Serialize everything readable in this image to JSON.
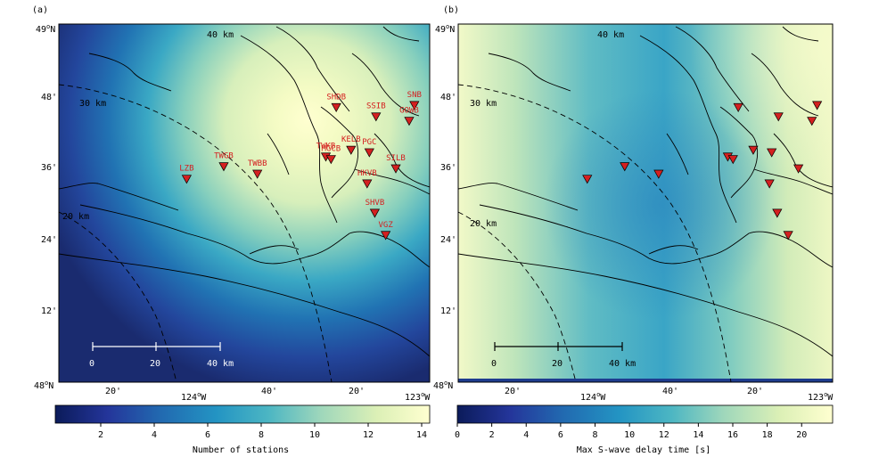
{
  "panel_a": {
    "label": "(a)",
    "colorbar_label": "Number of stations",
    "colorbar_ticks": [
      "2",
      "4",
      "6",
      "8",
      "10",
      "12",
      "14"
    ],
    "colorbar_range": [
      0.3,
      14.3
    ]
  },
  "panel_b": {
    "label": "(b)",
    "colorbar_label": "Max S-wave delay time [s]",
    "colorbar_ticks": [
      "0",
      "2",
      "4",
      "6",
      "8",
      "10",
      "12",
      "14",
      "16",
      "18",
      "20"
    ],
    "colorbar_range": [
      0,
      21.8
    ]
  },
  "lat_labels": {
    "49N": "49",
    "48m": "48'",
    "36m": "36'",
    "24m": "24'",
    "12m": "12'",
    "48N": "48"
  },
  "deg_sym": "o",
  "north": "N",
  "west": "W",
  "lon_labels": {
    "m20a": "20'",
    "124": "124",
    "m40": "40'",
    "m20b": "20'",
    "123": "123"
  },
  "depth_contours": {
    "c40": "40 km",
    "c30": "30 km",
    "c20": "20 km"
  },
  "scale_bar": {
    "t0": "0",
    "t20": "20",
    "t40": "40 km"
  },
  "colors": {
    "station": "#d42020"
  },
  "stations": [
    {
      "name": "SHDB",
      "lon": -123.378,
      "lat": 48.768
    },
    {
      "name": "SSIB",
      "lon": -123.217,
      "lat": 48.742
    },
    {
      "name": "SNB",
      "lon": -123.062,
      "lat": 48.774
    },
    {
      "name": "GOWB",
      "lon": -123.083,
      "lat": 48.73
    },
    {
      "name": "KELB",
      "lon": -123.318,
      "lat": 48.649
    },
    {
      "name": "TWKB",
      "lon": -123.42,
      "lat": 48.63
    },
    {
      "name": "MGCB",
      "lon": -123.399,
      "lat": 48.623
    },
    {
      "name": "PGC",
      "lon": -123.244,
      "lat": 48.642
    },
    {
      "name": "SILB",
      "lon": -123.137,
      "lat": 48.597
    },
    {
      "name": "HKVB",
      "lon": -123.253,
      "lat": 48.555
    },
    {
      "name": "SHVB",
      "lon": -123.222,
      "lat": 48.473
    },
    {
      "name": "VGZ",
      "lon": -123.178,
      "lat": 48.411
    },
    {
      "name": "TWBB",
      "lon": -123.697,
      "lat": 48.582
    },
    {
      "name": "TWGB",
      "lon": -123.833,
      "lat": 48.603
    },
    {
      "name": "LZB",
      "lon": -123.983,
      "lat": 48.568
    }
  ]
}
